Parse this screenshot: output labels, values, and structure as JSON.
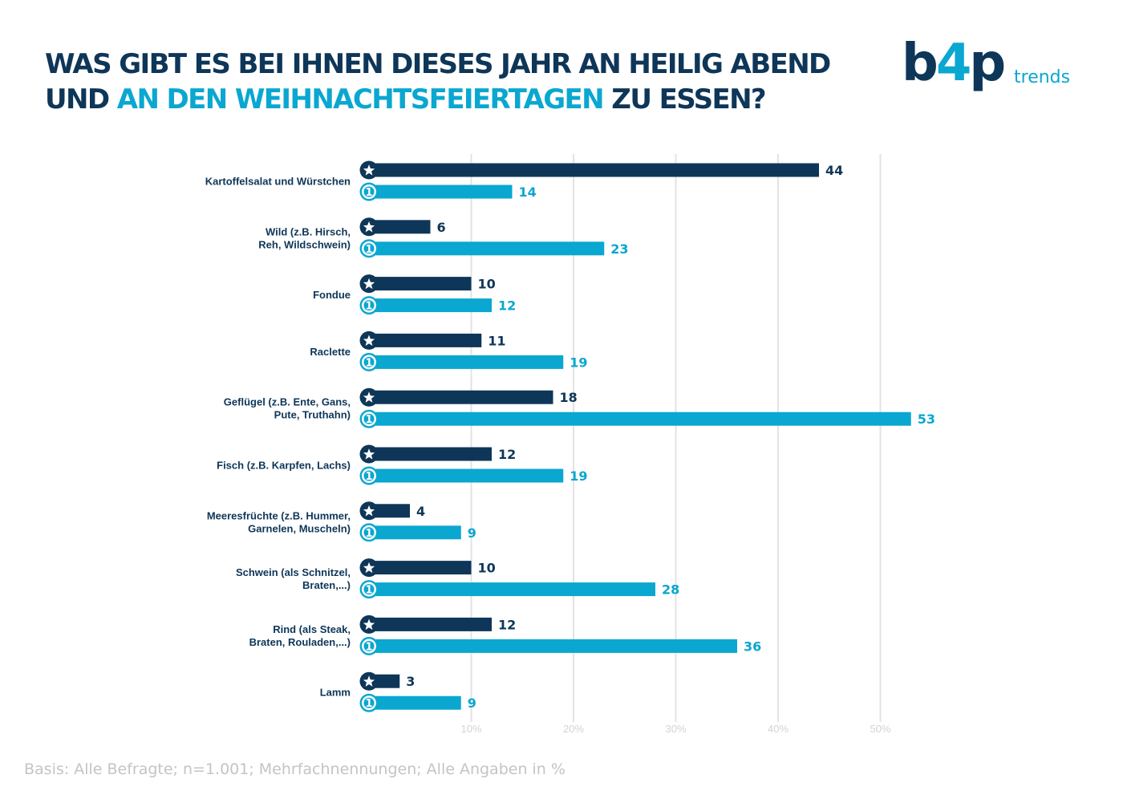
{
  "title": {
    "line1": "WAS GIBT ES BEI IHNEN DIESES JAHR AN HEILIG ABEND",
    "line2_prefix": "UND",
    "line2_highlight": "AN DEN WEIHNACHTSFEIERTAGEN",
    "line2_suffix": "ZU ESSEN?"
  },
  "logo": {
    "mark_part1": "b",
    "mark_part2": "4",
    "mark_part3": "p",
    "sub": "trends"
  },
  "footnote": "Basis: Alle Befragte; n=1.001; Mehrfachnennungen; Alle Angaben in %",
  "colors": {
    "dark": "#0e3658",
    "light": "#0aa7d0",
    "grid": "#e3e3e3",
    "tick": "#d3d3d3"
  },
  "chart_data": {
    "type": "bar",
    "orientation": "horizontal",
    "categories": [
      "Kartoffelsalat und Würstchen",
      "Wild (z.B. Hirsch,\nReh, Wildschwein)",
      "Fondue",
      "Raclette",
      "Geflügel (z.B. Ente, Gans,\nPute, Truthahn)",
      "Fisch  (z.B. Karpfen, Lachs)",
      "Meeresfrüchte (z.B. Hummer,\nGarnelen, Muscheln)",
      "Schwein (als Schnitzel,\nBraten,...)",
      "Rind  (als Steak,\nBraten, Rouladen,...)",
      "Lamm"
    ],
    "series": [
      {
        "marker": "star-icon",
        "values": [
          44,
          6,
          10,
          11,
          18,
          12,
          4,
          10,
          12,
          3
        ]
      },
      {
        "marker": "one-icon",
        "values": [
          14,
          23,
          12,
          19,
          53,
          19,
          9,
          28,
          36,
          9
        ]
      }
    ],
    "xlim": [
      0,
      55
    ],
    "xticks": [
      10,
      20,
      30,
      40,
      50
    ],
    "xtick_labels": [
      "10%",
      "20%",
      "30%",
      "40%",
      "50%"
    ],
    "grid": true,
    "unit": "%"
  }
}
